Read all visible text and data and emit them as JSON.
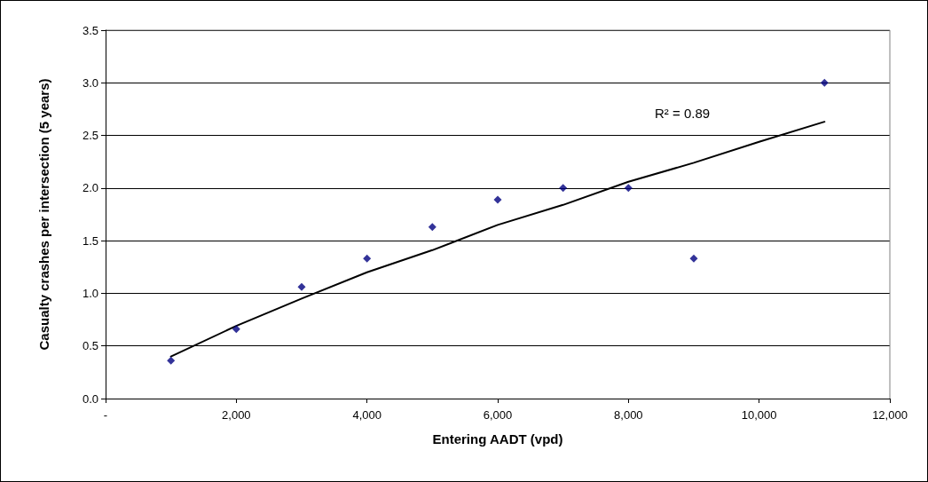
{
  "chart_data": {
    "type": "scatter",
    "xlabel": "Entering AADT (vpd)",
    "ylabel": "Casualty crashes per intersection (5 years)",
    "annotations": [
      "R² = 0.89"
    ],
    "series": [
      {
        "color": "#000080",
        "marker": "diamond",
        "x": [
          1000,
          2000,
          3000,
          4000,
          5000,
          6000,
          7000,
          8000,
          9000,
          11000
        ],
        "values": [
          0.36,
          0.66,
          1.06,
          1.33,
          1.63,
          1.89,
          2.0,
          2.0,
          1.33,
          3.0
        ]
      },
      {
        "type": "line",
        "color": "#000000",
        "marker": "none",
        "x": [
          1000,
          2000,
          3000,
          4000,
          5000,
          6000,
          7000,
          8000,
          9000,
          10000,
          11000
        ],
        "values": [
          0.4,
          0.69,
          0.95,
          1.2,
          1.41,
          1.65,
          1.84,
          2.06,
          2.24,
          2.44,
          2.63
        ]
      }
    ],
    "xlim": [
      0,
      12000
    ],
    "xticks": [
      {
        "value": 0,
        "label": "-"
      },
      {
        "value": 2000,
        "label": "2,000"
      },
      {
        "value": 4000,
        "label": "4,000"
      },
      {
        "value": 6000,
        "label": "6,000"
      },
      {
        "value": 8000,
        "label": "8,000"
      },
      {
        "value": 10000,
        "label": "10,000"
      },
      {
        "value": 12000,
        "label": "12,000"
      }
    ],
    "ylim": [
      0,
      3.5
    ],
    "yticks": [
      {
        "value": 0,
        "label": "0.0"
      },
      {
        "value": 0.5,
        "label": "0.5"
      },
      {
        "value": 1,
        "label": "1.0"
      },
      {
        "value": 1.5,
        "label": "1.5"
      },
      {
        "value": 2,
        "label": "2.0"
      },
      {
        "value": 2.5,
        "label": "2.5"
      },
      {
        "value": 3,
        "label": "3.0"
      },
      {
        "value": 3.5,
        "label": "3.5"
      }
    ],
    "grid": "y"
  }
}
